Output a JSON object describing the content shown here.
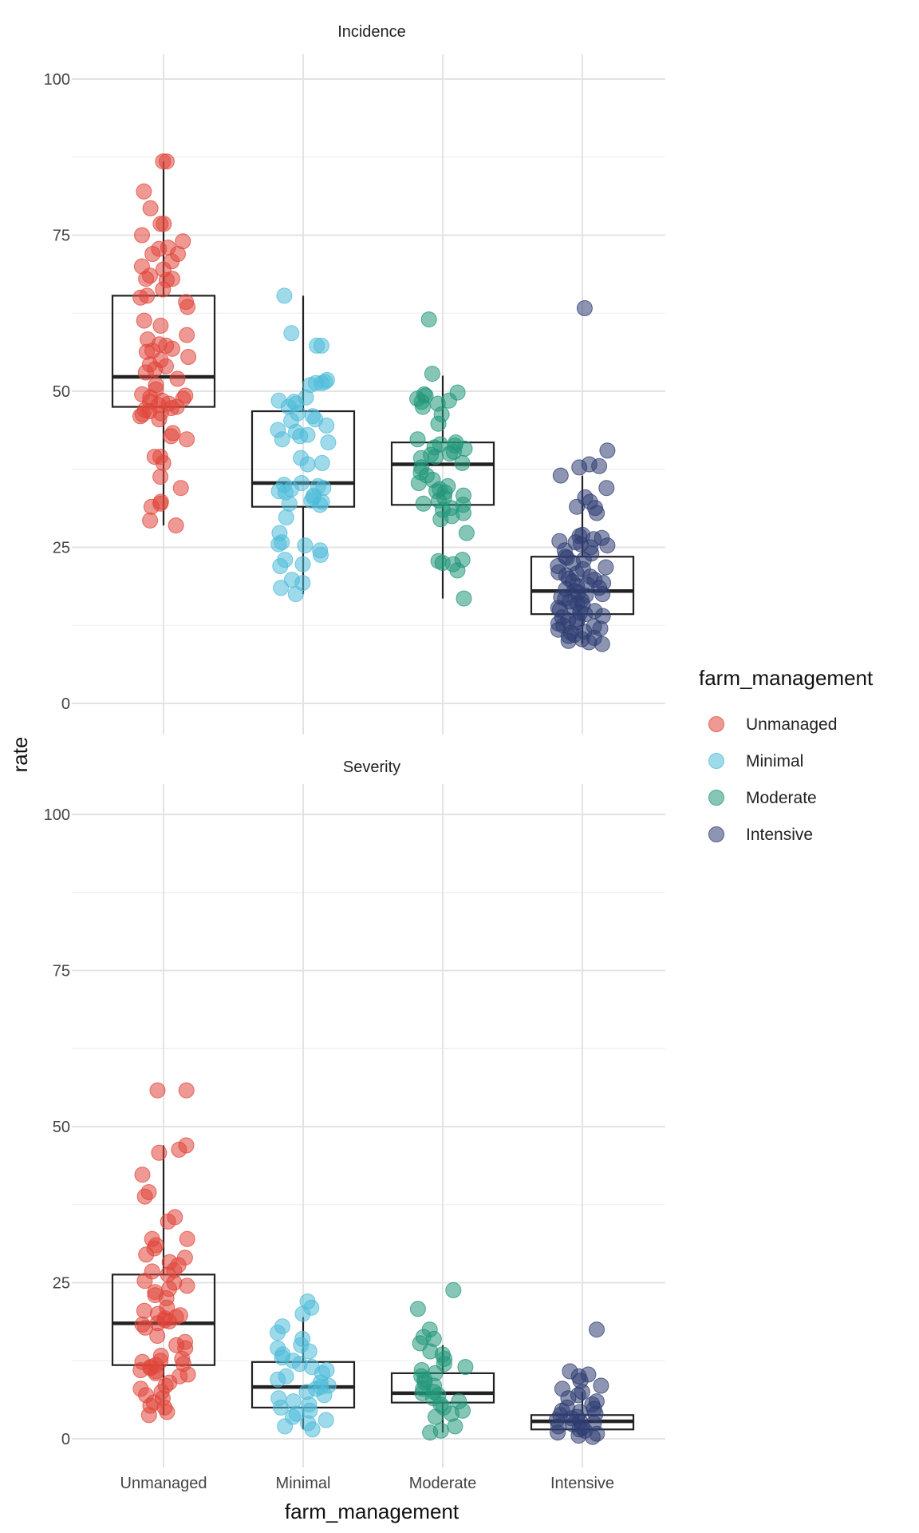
{
  "chart_data": {
    "type": "boxplot+jitter",
    "xlabel": "farm_management",
    "ylabel": "rate",
    "ylim": [
      0,
      100
    ],
    "yticks": [
      0,
      25,
      50,
      75,
      100
    ],
    "categories": [
      "Unmanaged",
      "Minimal",
      "Moderate",
      "Intensive"
    ],
    "legend": {
      "title": "farm_management",
      "position": "right",
      "entries": [
        "Unmanaged",
        "Minimal",
        "Moderate",
        "Intensive"
      ]
    },
    "colors": {
      "Unmanaged": "#e0453a",
      "Minimal": "#4fbcd9",
      "Moderate": "#22977a",
      "Intensive": "#2f3e72"
    },
    "panels": [
      {
        "title": "Incidence",
        "boxes": [
          {
            "category": "Unmanaged",
            "q1": 47.5,
            "median": 52.3,
            "q3": 65.3,
            "whisker_low": 28.5,
            "whisker_high": 86.8
          },
          {
            "category": "Minimal",
            "q1": 31.5,
            "median": 35.3,
            "q3": 46.8,
            "whisker_low": 17.5,
            "whisker_high": 65.3
          },
          {
            "category": "Moderate",
            "q1": 31.8,
            "median": 38.3,
            "q3": 41.8,
            "whisker_low": 16.8,
            "whisker_high": 52.5
          },
          {
            "category": "Intensive",
            "q1": 14.3,
            "median": 18.0,
            "q3": 23.5,
            "whisker_low": 9.5,
            "whisker_high": 36.5
          }
        ],
        "points": {
          "Unmanaged": [
            86.8,
            86.8,
            82.0,
            79.3,
            76.8,
            76.8,
            75.0,
            74.0,
            73.0,
            72.8,
            72.0,
            72.0,
            70.8,
            70.0,
            69.5,
            68.5,
            68.0,
            68.0,
            67.8,
            66.3,
            65.3,
            65.0,
            64.3,
            63.5,
            61.3,
            60.5,
            59.0,
            58.3,
            57.5,
            57.3,
            56.8,
            56.5,
            56.3,
            55.5,
            55.0,
            54.3,
            54.0,
            53.5,
            53.0,
            52.0,
            51.0,
            50.3,
            49.5,
            49.3,
            49.0,
            48.8,
            48.5,
            48.3,
            48.0,
            47.8,
            47.5,
            47.3,
            47.0,
            46.8,
            46.5,
            46.3,
            46.0,
            45.5,
            43.3,
            42.8,
            42.3,
            39.5,
            39.5,
            38.5,
            36.3,
            34.5,
            32.3,
            32.0,
            31.5,
            29.3,
            28.5
          ],
          "Minimal": [
            65.3,
            59.3,
            57.3,
            57.3,
            51.8,
            51.5,
            51.3,
            51.3,
            51.0,
            49.0,
            48.5,
            48.3,
            48.0,
            47.5,
            46.5,
            46.0,
            45.5,
            45.3,
            44.5,
            43.8,
            43.5,
            43.0,
            42.8,
            42.3,
            41.8,
            39.3,
            38.5,
            38.3,
            35.3,
            35.0,
            34.8,
            34.5,
            34.3,
            34.0,
            33.8,
            33.3,
            33.0,
            32.5,
            32.3,
            32.0,
            31.8,
            29.8,
            27.3,
            25.8,
            25.5,
            25.3,
            24.5,
            23.8,
            23.0,
            22.3,
            22.0,
            19.8,
            19.3,
            18.5,
            17.5
          ],
          "Moderate": [
            61.5,
            52.8,
            49.8,
            49.5,
            49.3,
            48.8,
            48.5,
            48.3,
            48.0,
            47.5,
            46.3,
            44.8,
            42.3,
            41.8,
            41.5,
            41.3,
            41.0,
            40.8,
            40.3,
            40.0,
            39.8,
            39.5,
            39.3,
            38.5,
            37.8,
            37.0,
            36.5,
            35.8,
            35.3,
            34.8,
            34.3,
            34.0,
            33.8,
            33.3,
            33.0,
            32.5,
            32.0,
            31.8,
            31.3,
            31.0,
            30.5,
            30.0,
            29.5,
            27.3,
            23.0,
            22.8,
            22.5,
            22.3,
            21.3,
            16.8
          ],
          "Intensive": [
            63.3,
            40.5,
            38.3,
            38.0,
            37.8,
            36.5,
            34.5,
            33.0,
            32.3,
            31.5,
            31.3,
            30.5,
            27.0,
            26.8,
            26.5,
            26.3,
            26.0,
            25.8,
            25.5,
            25.3,
            25.0,
            24.5,
            24.0,
            23.5,
            23.3,
            23.0,
            22.5,
            22.0,
            21.8,
            21.5,
            21.0,
            20.8,
            20.5,
            20.3,
            20.0,
            19.8,
            19.5,
            19.3,
            19.0,
            18.8,
            18.5,
            18.3,
            18.0,
            17.8,
            17.5,
            17.3,
            17.0,
            16.8,
            16.5,
            16.3,
            16.0,
            15.8,
            15.5,
            15.3,
            15.0,
            14.8,
            14.5,
            14.3,
            14.0,
            13.8,
            13.5,
            13.3,
            13.0,
            12.8,
            12.5,
            12.3,
            12.0,
            11.8,
            11.5,
            11.3,
            11.0,
            10.8,
            10.5,
            10.3,
            10.0,
            9.8,
            9.5
          ]
        }
      },
      {
        "title": "Severity",
        "boxes": [
          {
            "category": "Unmanaged",
            "q1": 11.8,
            "median": 18.5,
            "q3": 26.3,
            "whisker_low": 3.8,
            "whisker_high": 47.0
          },
          {
            "category": "Minimal",
            "q1": 5.0,
            "median": 8.3,
            "q3": 12.3,
            "whisker_low": 1.5,
            "whisker_high": 19.5
          },
          {
            "category": "Moderate",
            "q1": 5.8,
            "median": 7.3,
            "q3": 10.5,
            "whisker_low": 1.0,
            "whisker_high": 15.0
          },
          {
            "category": "Intensive",
            "q1": 1.5,
            "median": 2.8,
            "q3": 3.8,
            "whisker_low": 0.5,
            "whisker_high": 7.5
          }
        ],
        "points": {
          "Unmanaged": [
            55.8,
            55.8,
            47.0,
            46.3,
            45.8,
            42.3,
            39.5,
            38.8,
            35.5,
            34.8,
            32.0,
            32.0,
            31.0,
            30.5,
            29.5,
            29.0,
            28.3,
            27.8,
            27.0,
            26.8,
            26.3,
            25.3,
            25.0,
            24.5,
            24.0,
            23.5,
            23.0,
            22.5,
            21.0,
            20.5,
            20.0,
            19.8,
            19.5,
            19.3,
            19.0,
            18.8,
            18.5,
            18.3,
            17.8,
            16.5,
            15.5,
            15.0,
            14.5,
            13.3,
            12.8,
            12.5,
            12.3,
            12.0,
            11.8,
            11.5,
            11.3,
            11.0,
            10.8,
            10.5,
            10.3,
            10.0,
            9.0,
            8.5,
            8.0,
            7.5,
            7.0,
            6.5,
            5.8,
            5.3,
            5.0,
            4.3,
            3.8
          ],
          "Minimal": [
            22.0,
            21.0,
            20.0,
            18.0,
            17.0,
            16.0,
            15.0,
            14.5,
            14.0,
            13.5,
            13.0,
            12.5,
            12.0,
            11.5,
            11.0,
            10.5,
            10.0,
            9.5,
            9.0,
            8.5,
            8.3,
            8.0,
            7.5,
            7.0,
            6.5,
            6.0,
            5.5,
            5.0,
            4.5,
            4.0,
            3.5,
            3.0,
            2.5,
            2.0,
            1.5
          ],
          "Moderate": [
            23.8,
            20.8,
            17.5,
            16.3,
            16.0,
            15.3,
            14.0,
            13.5,
            12.8,
            12.0,
            11.5,
            11.0,
            10.5,
            10.0,
            9.5,
            9.0,
            8.5,
            8.0,
            7.5,
            7.3,
            7.0,
            6.5,
            6.0,
            5.5,
            5.0,
            4.5,
            4.0,
            3.5,
            2.0,
            1.3,
            1.0
          ],
          "Intensive": [
            17.5,
            10.8,
            10.3,
            10.0,
            9.3,
            8.5,
            8.0,
            7.5,
            7.0,
            6.5,
            6.0,
            5.5,
            5.0,
            4.8,
            4.5,
            4.3,
            4.0,
            3.8,
            3.5,
            3.3,
            3.0,
            2.8,
            2.5,
            2.3,
            2.0,
            1.8,
            1.5,
            1.3,
            1.0,
            0.8,
            0.5,
            0.3
          ]
        }
      }
    ]
  }
}
